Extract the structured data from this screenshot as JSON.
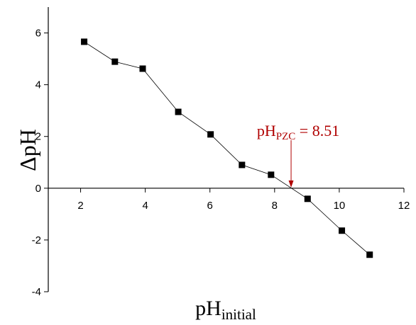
{
  "chart_data": {
    "type": "line",
    "y_label": "ΔpH",
    "x_label": {
      "main": "pH",
      "sub": "initial"
    },
    "x": [
      2.11,
      3.06,
      3.92,
      5.02,
      6.02,
      6.99,
      7.89,
      9.02,
      10.08,
      10.94
    ],
    "series": [
      {
        "color": "#000000",
        "values": [
          5.66,
          4.89,
          4.62,
          2.95,
          2.08,
          0.9,
          0.52,
          -0.41,
          -1.64,
          -2.57
        ]
      }
    ],
    "xlim": [
      1,
      12
    ],
    "xticks": [
      2,
      4,
      6,
      8,
      10,
      12
    ],
    "ylim": [
      -4,
      7
    ],
    "yticks": [
      -4,
      -2,
      0,
      2,
      4,
      6
    ],
    "annotation": {
      "main": "pH",
      "sub": "PZC",
      "rest": " = 8.51",
      "x": 8.51,
      "color": "#b00000"
    }
  }
}
